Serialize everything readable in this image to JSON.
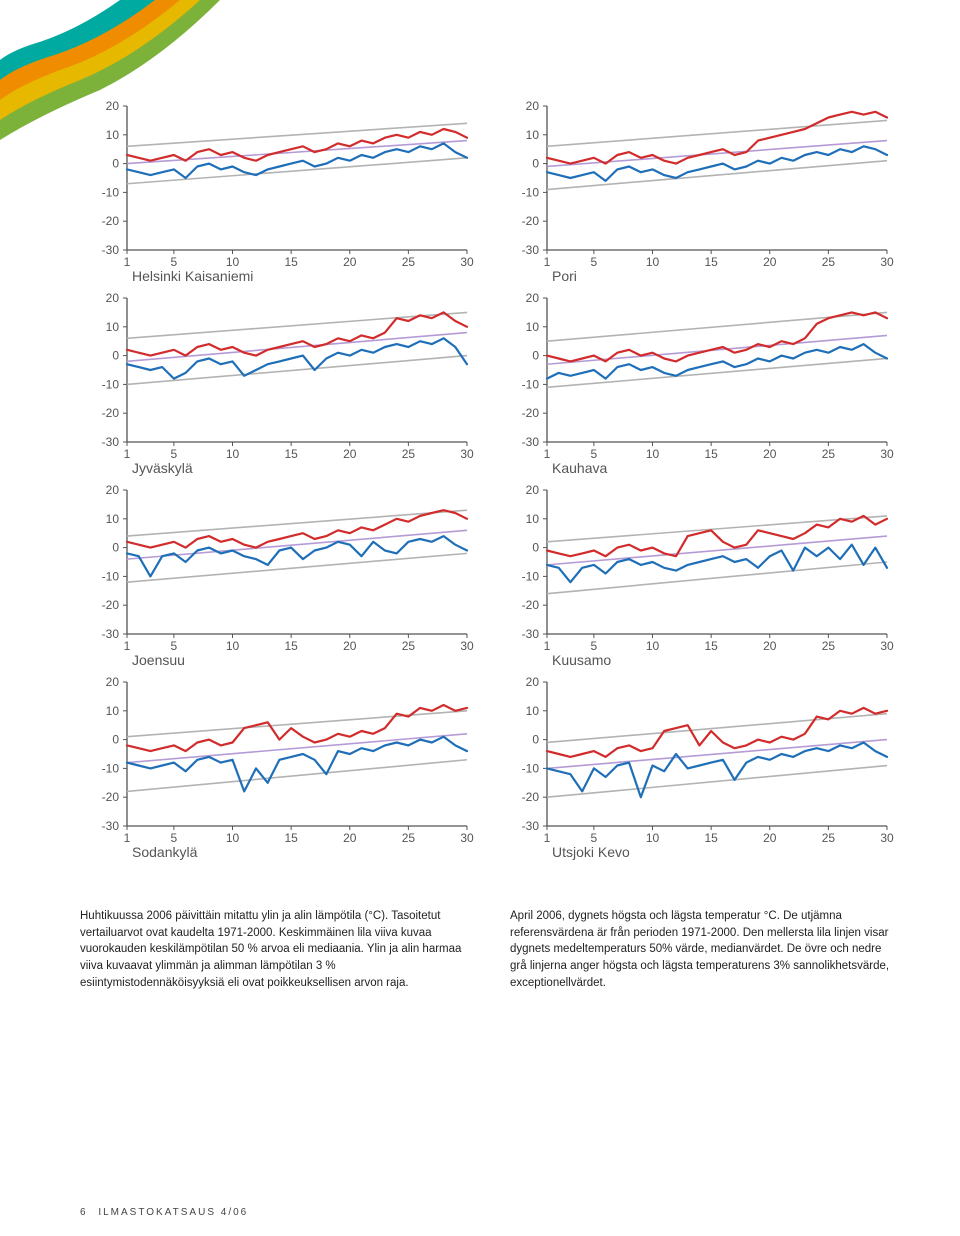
{
  "page_number": "6",
  "footer_text": "ILMASTOKATSAUS 4/06",
  "swoosh_colors": [
    "#7db23a",
    "#e6b800",
    "#f08c00",
    "#00aaa0"
  ],
  "chart_common": {
    "x_ticks": [
      1,
      5,
      10,
      15,
      20,
      25,
      30
    ],
    "y_ticks": [
      20,
      10,
      0,
      -10,
      -20,
      -30
    ],
    "xlim": [
      1,
      30
    ],
    "ylim": [
      -30,
      20
    ],
    "colors": {
      "axis": "#555555",
      "tick_text": "#555555",
      "grid": "#b3b3b3",
      "upper_grey": "#b3b3b3",
      "lower_grey": "#b3b3b3",
      "median": "#b49bd6",
      "max_line": "#d22b2b",
      "min_line": "#1e6fb8",
      "background": "#ffffff"
    },
    "line_width_main": 2.2,
    "line_width_grey": 1.6,
    "line_width_median": 1.6,
    "label_fontsize": 14,
    "tick_fontsize": 12
  },
  "charts": [
    {
      "label": "Helsinki Kaisaniemi",
      "upper_grey": {
        "start": 6,
        "end": 14
      },
      "lower_grey": {
        "start": -7,
        "end": 2
      },
      "median": {
        "start": 0,
        "end": 8
      },
      "max": [
        3,
        2,
        1,
        2,
        3,
        1,
        4,
        5,
        3,
        4,
        2,
        1,
        3,
        4,
        5,
        6,
        4,
        5,
        7,
        6,
        8,
        7,
        9,
        10,
        9,
        11,
        10,
        12,
        11,
        9
      ],
      "min": [
        -2,
        -3,
        -4,
        -3,
        -2,
        -5,
        -1,
        0,
        -2,
        -1,
        -3,
        -4,
        -2,
        -1,
        0,
        1,
        -1,
        0,
        2,
        1,
        3,
        2,
        4,
        5,
        4,
        6,
        5,
        7,
        4,
        2
      ]
    },
    {
      "label": "Pori",
      "upper_grey": {
        "start": 6,
        "end": 15
      },
      "lower_grey": {
        "start": -9,
        "end": 1
      },
      "median": {
        "start": -1,
        "end": 8
      },
      "max": [
        2,
        1,
        0,
        1,
        2,
        0,
        3,
        4,
        2,
        3,
        1,
        0,
        2,
        3,
        4,
        5,
        3,
        4,
        8,
        9,
        10,
        11,
        12,
        14,
        16,
        17,
        18,
        17,
        18,
        16
      ],
      "min": [
        -3,
        -4,
        -5,
        -4,
        -3,
        -6,
        -2,
        -1,
        -3,
        -2,
        -4,
        -5,
        -3,
        -2,
        -1,
        0,
        -2,
        -1,
        1,
        0,
        2,
        1,
        3,
        4,
        3,
        5,
        4,
        6,
        5,
        3
      ]
    },
    {
      "label": "Jyväskylä",
      "upper_grey": {
        "start": 6,
        "end": 15
      },
      "lower_grey": {
        "start": -10,
        "end": 0
      },
      "median": {
        "start": -2,
        "end": 8
      },
      "max": [
        2,
        1,
        0,
        1,
        2,
        0,
        3,
        4,
        2,
        3,
        1,
        0,
        2,
        3,
        4,
        5,
        3,
        4,
        6,
        5,
        7,
        6,
        8,
        13,
        12,
        14,
        13,
        15,
        12,
        10
      ],
      "min": [
        -3,
        -4,
        -5,
        -4,
        -8,
        -6,
        -2,
        -1,
        -3,
        -2,
        -7,
        -5,
        -3,
        -2,
        -1,
        0,
        -5,
        -1,
        1,
        0,
        2,
        1,
        3,
        4,
        3,
        5,
        4,
        6,
        3,
        -3
      ]
    },
    {
      "label": "Kauhava",
      "upper_grey": {
        "start": 5,
        "end": 15
      },
      "lower_grey": {
        "start": -11,
        "end": -1
      },
      "median": {
        "start": -3,
        "end": 7
      },
      "max": [
        0,
        -1,
        -2,
        -1,
        0,
        -2,
        1,
        2,
        0,
        1,
        -1,
        -2,
        0,
        1,
        2,
        3,
        1,
        2,
        4,
        3,
        5,
        4,
        6,
        11,
        13,
        14,
        15,
        14,
        15,
        13
      ],
      "min": [
        -8,
        -6,
        -7,
        -6,
        -5,
        -8,
        -4,
        -3,
        -5,
        -4,
        -6,
        -7,
        -5,
        -4,
        -3,
        -2,
        -4,
        -3,
        -1,
        -2,
        0,
        -1,
        1,
        2,
        1,
        3,
        2,
        4,
        1,
        -1
      ]
    },
    {
      "label": "Joensuu",
      "upper_grey": {
        "start": 4,
        "end": 13
      },
      "lower_grey": {
        "start": -12,
        "end": -2
      },
      "median": {
        "start": -4,
        "end": 6
      },
      "max": [
        2,
        1,
        0,
        1,
        2,
        0,
        3,
        4,
        2,
        3,
        1,
        0,
        2,
        3,
        4,
        5,
        3,
        4,
        6,
        5,
        7,
        6,
        8,
        10,
        9,
        11,
        12,
        13,
        12,
        10
      ],
      "min": [
        -2,
        -3,
        -10,
        -3,
        -2,
        -5,
        -1,
        0,
        -2,
        -1,
        -3,
        -4,
        -6,
        -1,
        0,
        -4,
        -1,
        0,
        2,
        1,
        -3,
        2,
        -1,
        -2,
        2,
        3,
        2,
        4,
        1,
        -1
      ]
    },
    {
      "label": "Kuusamo",
      "upper_grey": {
        "start": 2,
        "end": 11
      },
      "lower_grey": {
        "start": -16,
        "end": -5
      },
      "median": {
        "start": -6,
        "end": 4
      },
      "max": [
        -1,
        -2,
        -3,
        -2,
        -1,
        -3,
        0,
        1,
        -1,
        0,
        -2,
        -3,
        4,
        5,
        6,
        2,
        0,
        1,
        6,
        5,
        4,
        3,
        5,
        8,
        7,
        10,
        9,
        11,
        8,
        10
      ],
      "min": [
        -6,
        -7,
        -12,
        -7,
        -6,
        -9,
        -5,
        -4,
        -6,
        -5,
        -7,
        -8,
        -6,
        -5,
        -4,
        -3,
        -5,
        -4,
        -7,
        -3,
        -1,
        -8,
        0,
        -3,
        0,
        -4,
        1,
        -6,
        0,
        -7
      ]
    },
    {
      "label": "Sodankylä",
      "upper_grey": {
        "start": 1,
        "end": 10
      },
      "lower_grey": {
        "start": -18,
        "end": -7
      },
      "median": {
        "start": -8,
        "end": 2
      },
      "max": [
        -2,
        -3,
        -4,
        -3,
        -2,
        -4,
        -1,
        0,
        -2,
        -1,
        4,
        5,
        6,
        0,
        4,
        1,
        -1,
        0,
        2,
        1,
        3,
        2,
        4,
        9,
        8,
        11,
        10,
        12,
        10,
        11
      ],
      "min": [
        -8,
        -9,
        -10,
        -9,
        -8,
        -11,
        -7,
        -6,
        -8,
        -7,
        -18,
        -10,
        -15,
        -7,
        -6,
        -5,
        -7,
        -12,
        -4,
        -5,
        -3,
        -4,
        -2,
        -1,
        -2,
        0,
        -1,
        1,
        -2,
        -4
      ]
    },
    {
      "label": "Utsjoki Kevo",
      "upper_grey": {
        "start": -1,
        "end": 9
      },
      "lower_grey": {
        "start": -20,
        "end": -9
      },
      "median": {
        "start": -10,
        "end": 0
      },
      "max": [
        -4,
        -5,
        -6,
        -5,
        -4,
        -6,
        -3,
        -2,
        -4,
        -3,
        3,
        4,
        5,
        -2,
        3,
        -1,
        -3,
        -2,
        0,
        -1,
        1,
        0,
        2,
        8,
        7,
        10,
        9,
        11,
        9,
        10
      ],
      "min": [
        -10,
        -11,
        -12,
        -18,
        -10,
        -13,
        -9,
        -8,
        -20,
        -9,
        -11,
        -5,
        -10,
        -9,
        -8,
        -7,
        -14,
        -8,
        -6,
        -7,
        -5,
        -6,
        -4,
        -3,
        -4,
        -2,
        -3,
        -1,
        -4,
        -6
      ]
    }
  ],
  "caption_fi": "Huhtikuussa 2006 päivittäin mitattu ylin ja alin lämpötila (°C). Tasoitetut vertailuarvot ovat kaudelta 1971-2000. Keskimmäinen lila viiva kuvaa vuorokauden keskilämpötilan 50 % arvoa eli mediaania. Ylin ja alin harmaa viiva kuvaavat ylimmän ja alimman lämpötilan 3 % esiintymistodennäköisyyksiä eli ovat poikkeuksellisen arvon raja.",
  "caption_sv": "April 2006, dygnets högsta och lägsta temperatur °C. De utjämna referensvärdena är från perioden 1971-2000. Den mellersta lila linjen visar dygnets medeltemperaturs 50% värde, medianvärdet. De övre och nedre grå linjerna anger högsta och lägsta temperaturens 3% sannolikhetsvärde, exceptionellvärdet."
}
